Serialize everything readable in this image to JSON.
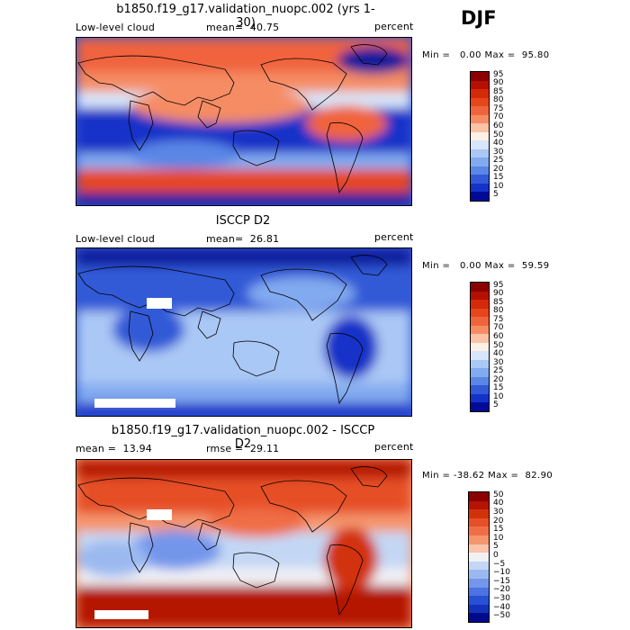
{
  "season": "DJF",
  "panels": [
    {
      "title": "b1850.f19_g17.validation_nuopc.002 (yrs 1-30)",
      "left_label": "Low-level cloud",
      "mid_label": "mean=  40.75",
      "units": "percent",
      "minmax": "Min =   0.00 Max =  95.80",
      "ticks": [
        "95",
        "90",
        "85",
        "80",
        "75",
        "70",
        "60",
        "50",
        "40",
        "30",
        "25",
        "20",
        "15",
        "10",
        "5"
      ]
    },
    {
      "title": "ISCCP D2",
      "left_label": "Low-level cloud",
      "mid_label": "mean=  26.81",
      "units": "percent",
      "minmax": "Min =   0.00 Max =  59.59",
      "ticks": [
        "95",
        "90",
        "85",
        "80",
        "75",
        "70",
        "60",
        "50",
        "40",
        "30",
        "25",
        "20",
        "15",
        "10",
        "5"
      ]
    },
    {
      "title": "b1850.f19_g17.validation_nuopc.002 - ISCCP D2",
      "left_label": "mean =  13.94",
      "mid_label": "rmse =  29.11",
      "units": "percent",
      "minmax": "Min = -38.62 Max =  82.90",
      "ticks": [
        "50",
        "40",
        "30",
        "20",
        "15",
        "10",
        "5",
        "0",
        "−5",
        "−10",
        "−15",
        "−20",
        "−30",
        "−40",
        "−50"
      ]
    }
  ],
  "colors": {
    "seq": [
      "#8b0000",
      "#b40f00",
      "#d52a0a",
      "#e6461c",
      "#f0643c",
      "#f58c64",
      "#fbc2a6",
      "#fdf0e6",
      "#d7e6fa",
      "#aac8f5",
      "#82aaf0",
      "#5a87e6",
      "#325ad7",
      "#1432c8",
      "#000a96"
    ],
    "diff": [
      "#8b0000",
      "#b41400",
      "#d2320a",
      "#e65028",
      "#f06e46",
      "#f5966e",
      "#fac3aa",
      "#f0f0f5",
      "#c3d7f5",
      "#9bb9f0",
      "#7396eb",
      "#4b73e1",
      "#2850d2",
      "#1432b9",
      "#000a8c"
    ]
  }
}
